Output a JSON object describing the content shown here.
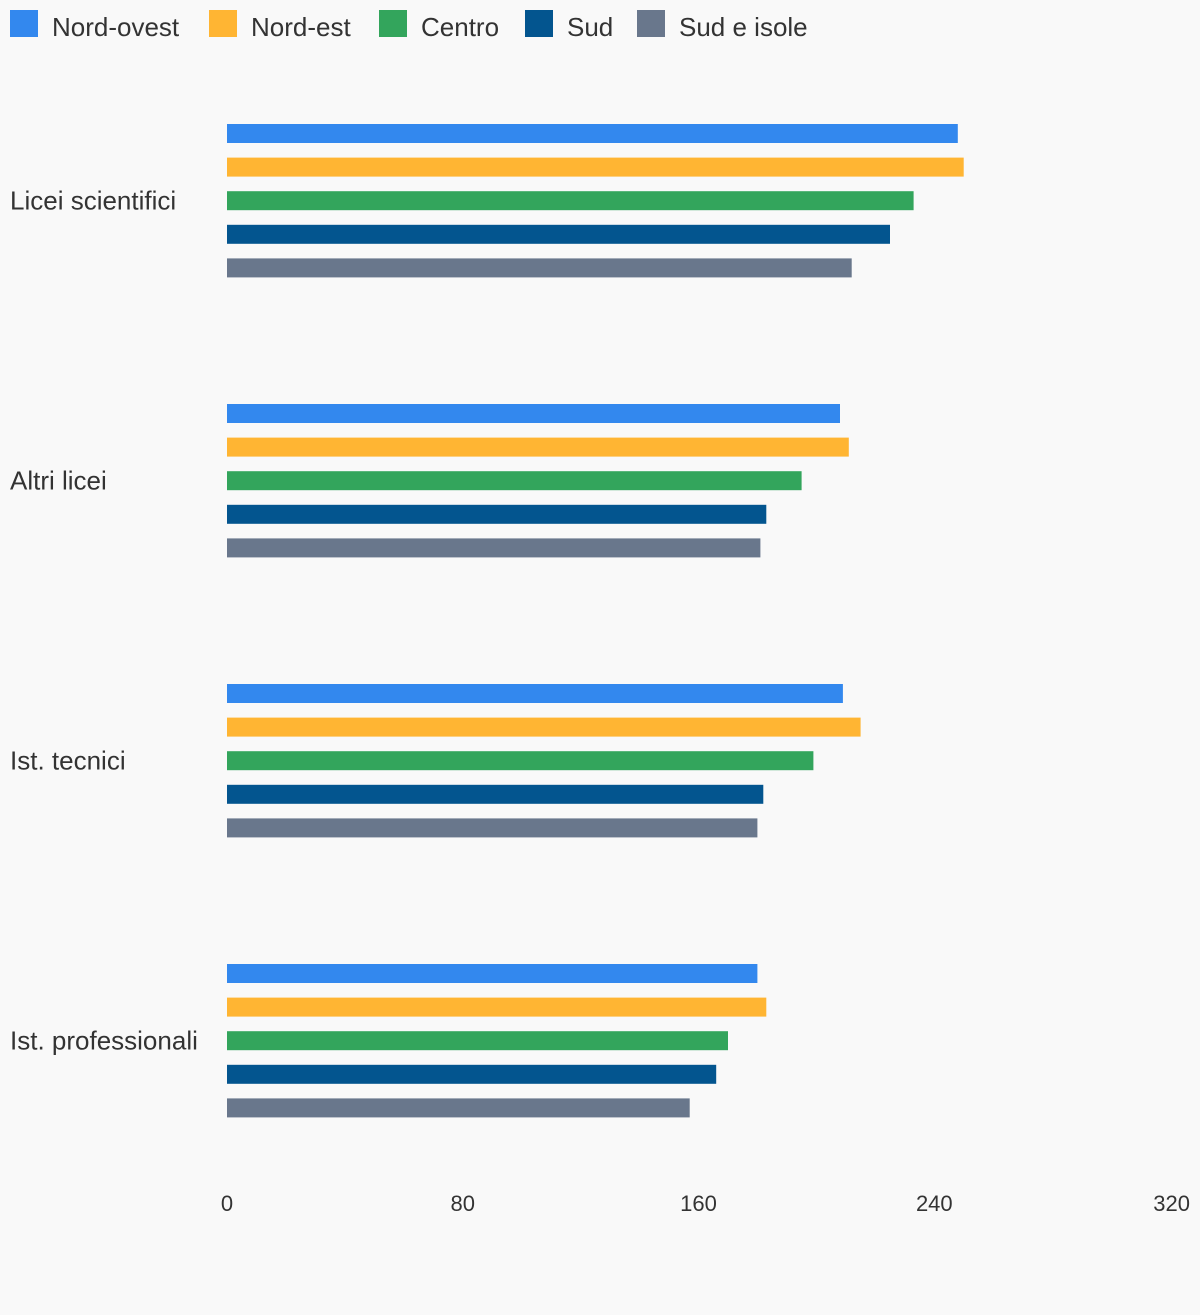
{
  "chart_data": {
    "type": "bar",
    "orientation": "horizontal",
    "title": "",
    "xlabel": "",
    "ylabel": "",
    "xlim": [
      0,
      320
    ],
    "x_ticks": [
      "0",
      "80",
      "160",
      "240",
      "320"
    ],
    "grid": false,
    "legend_position": "top-left",
    "categories": [
      "Licei scientifici",
      "Altri licei",
      "Ist. tecnici",
      "Ist. professionali"
    ],
    "series": [
      {
        "name": "Nord-ovest",
        "color": "#3388ee",
        "values": [
          248,
          208,
          209,
          180
        ]
      },
      {
        "name": "Nord-est",
        "color": "#ffb533",
        "values": [
          250,
          211,
          215,
          183
        ]
      },
      {
        "name": "Centro",
        "color": "#33a55c",
        "values": [
          233,
          195,
          199,
          170
        ]
      },
      {
        "name": "Sud",
        "color": "#03558f",
        "values": [
          225,
          183,
          182,
          166
        ]
      },
      {
        "name": "Sud e isole",
        "color": "#69778c",
        "values": [
          212,
          181,
          180,
          157
        ]
      }
    ]
  }
}
